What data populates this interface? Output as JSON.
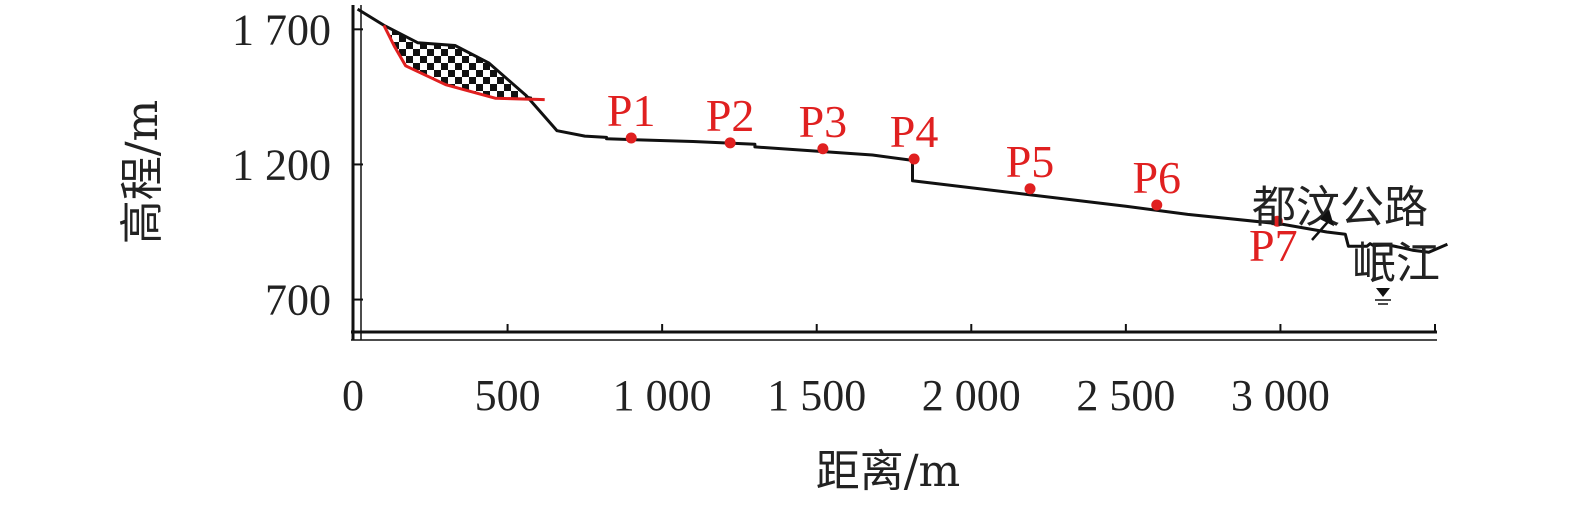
{
  "chart_data": {
    "type": "line",
    "title": "",
    "xlabel": "距离/m",
    "ylabel": "高程/m",
    "xlim": [
      0,
      3500
    ],
    "ylim": [
      580,
      1790
    ],
    "x_ticks": [
      {
        "value": 0,
        "label": "0"
      },
      {
        "value": 500,
        "label": "500"
      },
      {
        "value": 1000,
        "label": "1 000"
      },
      {
        "value": 1500,
        "label": "1 500"
      },
      {
        "value": 2000,
        "label": "2 000"
      },
      {
        "value": 2500,
        "label": "2 500"
      },
      {
        "value": 3000,
        "label": "3 000"
      }
    ],
    "y_ticks": [
      {
        "value": 700,
        "label": "700"
      },
      {
        "value": 1200,
        "label": "1 200"
      },
      {
        "value": 1700,
        "label": "1 700"
      }
    ],
    "series": [
      {
        "role": "terrain-profile",
        "color": "#111111",
        "points": [
          [
            15,
            1775
          ],
          [
            100,
            1715
          ],
          [
            210,
            1650
          ],
          [
            330,
            1640
          ],
          [
            440,
            1575
          ],
          [
            560,
            1455
          ],
          [
            660,
            1325
          ],
          [
            750,
            1305
          ],
          [
            820,
            1300
          ],
          [
            820,
            1295
          ],
          [
            1100,
            1285
          ],
          [
            1300,
            1275
          ],
          [
            1300,
            1265
          ],
          [
            1680,
            1235
          ],
          [
            1810,
            1215
          ],
          [
            1810,
            1140
          ],
          [
            2500,
            1045
          ],
          [
            2700,
            1015
          ],
          [
            3000,
            980
          ],
          [
            3150,
            950
          ],
          [
            3210,
            942
          ],
          [
            3220,
            897
          ],
          [
            3280,
            897
          ],
          [
            3290,
            907
          ],
          [
            3300,
            900
          ],
          [
            3350,
            902
          ],
          [
            3400,
            890
          ],
          [
            3430,
            882
          ],
          [
            3480,
            875
          ],
          [
            3540,
            905
          ]
        ]
      },
      {
        "role": "sliding-surface",
        "color": "#e02020",
        "points": [
          [
            100,
            1715
          ],
          [
            135,
            1635
          ],
          [
            170,
            1565
          ],
          [
            300,
            1495
          ],
          [
            460,
            1445
          ],
          [
            620,
            1440
          ]
        ]
      }
    ],
    "landslide_mass": {
      "fill_pattern": "checkerboard",
      "color": "#111111",
      "boundary": [
        [
          100,
          1715
        ],
        [
          210,
          1650
        ],
        [
          330,
          1640
        ],
        [
          440,
          1575
        ],
        [
          560,
          1455
        ],
        [
          620,
          1440
        ],
        [
          460,
          1445
        ],
        [
          300,
          1495
        ],
        [
          170,
          1565
        ],
        [
          135,
          1635
        ]
      ]
    },
    "monitoring_points": [
      {
        "label": "P1",
        "x": 900,
        "y": 1298,
        "color": "#e02020",
        "label_pos": "above"
      },
      {
        "label": "P2",
        "x": 1220,
        "y": 1280,
        "color": "#e02020",
        "label_pos": "above"
      },
      {
        "label": "P3",
        "x": 1520,
        "y": 1258,
        "color": "#e02020",
        "label_pos": "above"
      },
      {
        "label": "P4",
        "x": 1815,
        "y": 1220,
        "color": "#e02020",
        "label_pos": "above"
      },
      {
        "label": "P5",
        "x": 2190,
        "y": 1110,
        "color": "#e02020",
        "label_pos": "above"
      },
      {
        "label": "P6",
        "x": 2600,
        "y": 1050,
        "color": "#e02020",
        "label_pos": "above"
      },
      {
        "label": "P7",
        "x": 2990,
        "y": 990,
        "color": "#e02020",
        "label_pos": "below"
      }
    ],
    "annotations": [
      {
        "text": "都汶公路",
        "anchor_x": 3180,
        "anchor_y": 960,
        "arrow": true
      },
      {
        "text": "岷江",
        "anchor_x": 3350,
        "anchor_y": 905,
        "water_symbol": true
      }
    ],
    "colors": {
      "axis": "#111111",
      "text": "#222222",
      "accent": "#e02020"
    }
  }
}
